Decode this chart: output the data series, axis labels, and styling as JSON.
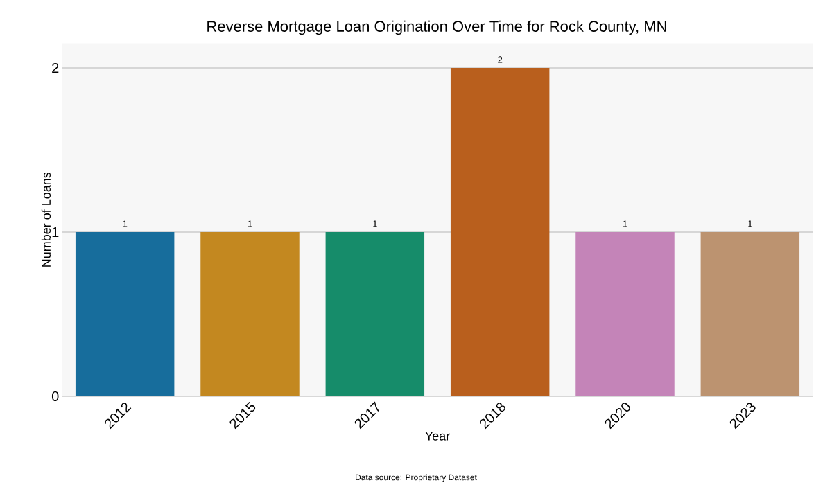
{
  "chart_data": {
    "type": "bar",
    "title": "Reverse Mortgage Loan Origination Over Time for Rock County, MN",
    "xlabel": "Year",
    "ylabel": "Number of Loans",
    "categories": [
      "2012",
      "2015",
      "2017",
      "2018",
      "2020",
      "2023"
    ],
    "values": [
      1,
      1,
      1,
      2,
      1,
      1
    ],
    "colors": [
      "#176d9c",
      "#c38820",
      "#168c6a",
      "#b95f1d",
      "#c484b8",
      "#bc9370"
    ],
    "ylim": [
      0,
      2.15
    ],
    "yticks": [
      0,
      1,
      2
    ],
    "grid": "y",
    "data_labels": true,
    "annotations": [
      "Data source: Proprietary Dataset"
    ]
  }
}
